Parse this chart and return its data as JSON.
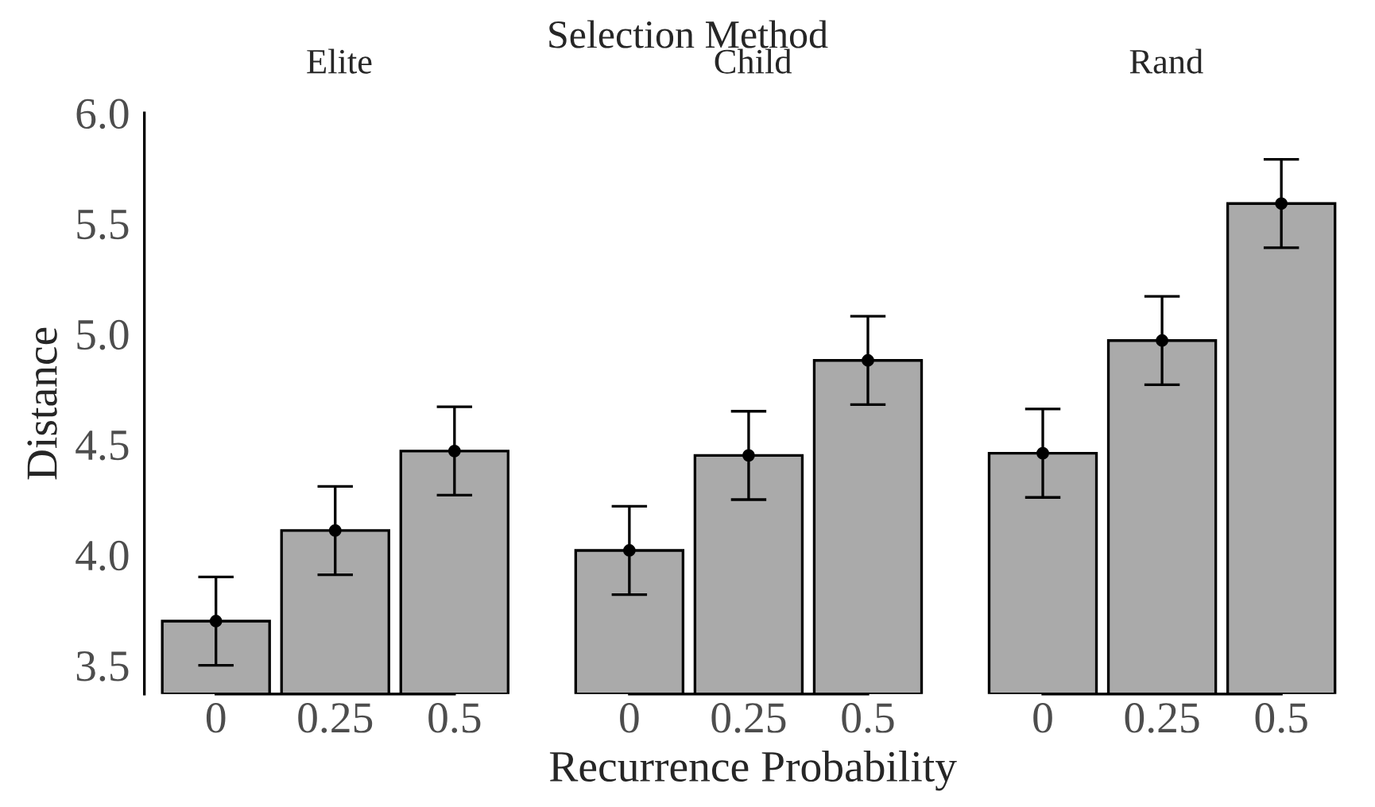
{
  "chart_data": [
    {
      "type": "bar",
      "title": "Elite",
      "annotations": [
        "Selection Method"
      ],
      "ylabel": "Distance",
      "categories": [
        "0",
        "0.25",
        "0.5"
      ],
      "series": [
        {
          "color": "#aaaaaa",
          "values": [
            3.7,
            4.11,
            4.47
          ],
          "errors": [
            0.2,
            0.2,
            0.2
          ]
        },
        {
          "type": "scatter",
          "color": "#000000",
          "x": [
            "0",
            "0.25",
            "0.5"
          ],
          "values": [
            3.7,
            4.11,
            4.47
          ]
        }
      ],
      "marker": "circle",
      "ylim": [
        3.37,
        6.0
      ],
      "yticks": [
        {
          "value": 3.5,
          "label": "3.5"
        },
        {
          "value": 4.0,
          "label": "4.0"
        },
        {
          "value": 4.5,
          "label": "4.5"
        },
        {
          "value": 5.0,
          "label": "5.0"
        },
        {
          "value": 5.5,
          "label": "5.5"
        },
        {
          "value": 6.0,
          "label": "6.0"
        }
      ],
      "grid": false,
      "legend": false
    },
    {
      "type": "bar",
      "title": "Child",
      "xlabel": "Recurrence Probability",
      "categories": [
        "0",
        "0.25",
        "0.5"
      ],
      "series": [
        {
          "color": "#aaaaaa",
          "values": [
            4.02,
            4.45,
            4.88
          ],
          "errors": [
            0.2,
            0.2,
            0.2
          ]
        },
        {
          "type": "scatter",
          "color": "#000000",
          "x": [
            "0",
            "0.25",
            "0.5"
          ],
          "values": [
            4.02,
            4.45,
            4.88
          ]
        }
      ],
      "marker": "circle",
      "ylim": [
        3.37,
        6.0
      ],
      "tick_labels": "x",
      "grid": false,
      "legend": false
    },
    {
      "type": "bar",
      "title": "Rand",
      "categories": [
        "0",
        "0.25",
        "0.5"
      ],
      "series": [
        {
          "color": "#aaaaaa",
          "values": [
            4.46,
            4.97,
            5.59
          ],
          "errors": [
            0.2,
            0.2,
            0.2
          ]
        },
        {
          "type": "scatter",
          "color": "#000000",
          "x": [
            "0",
            "0.25",
            "0.5"
          ],
          "values": [
            4.46,
            4.97,
            5.59
          ]
        }
      ],
      "marker": "circle",
      "ylim": [
        3.37,
        6.0
      ],
      "tick_labels": "x",
      "grid": false,
      "legend": false
    }
  ]
}
